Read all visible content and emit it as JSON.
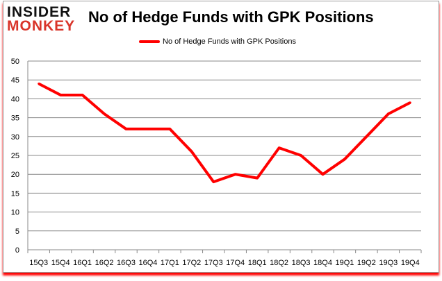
{
  "logo": {
    "line1": "INSIDER",
    "line2": "MONKEY"
  },
  "chart_data": {
    "type": "line",
    "title": "No of Hedge Funds with GPK Positions",
    "categories": [
      "15Q3",
      "15Q4",
      "16Q1",
      "16Q2",
      "16Q3",
      "16Q4",
      "17Q1",
      "17Q2",
      "17Q3",
      "17Q4",
      "18Q1",
      "18Q2",
      "18Q3",
      "18Q4",
      "19Q1",
      "19Q2",
      "19Q3",
      "19Q4"
    ],
    "series": [
      {
        "name": "No of Hedge Funds with GPK Positions",
        "color": "#ff0000",
        "values": [
          44,
          41,
          41,
          36,
          32,
          32,
          32,
          26,
          18,
          20,
          19,
          27,
          25,
          20,
          24,
          30,
          36,
          39
        ]
      }
    ],
    "ylim": [
      0,
      50
    ],
    "yticks": [
      0,
      5,
      10,
      15,
      20,
      25,
      30,
      35,
      40,
      45,
      50
    ],
    "grid": true,
    "legend": "top-center",
    "xlabel": "",
    "ylabel": ""
  }
}
